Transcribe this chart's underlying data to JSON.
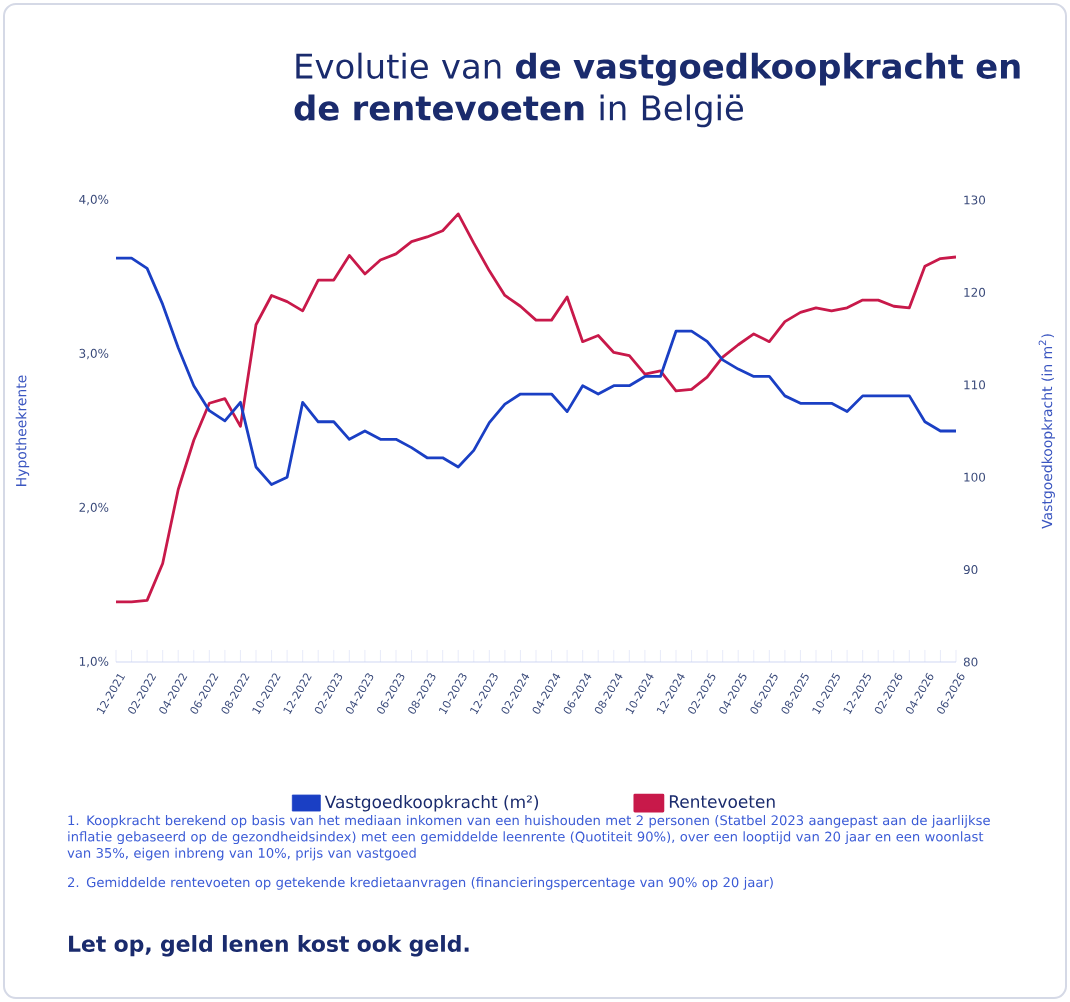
{
  "chart_data": {
    "type": "line",
    "title": "Evolutie van **de vastgoedkoopkracht en de rentevoeten** in België",
    "ylabel": "Hypotheekrente",
    "y2label": "Vastgoedkoopkracht (in m$^{2}$)",
    "categories": [
      "12-2021",
      null,
      "02-2022",
      null,
      "04-2022",
      null,
      "06-2022",
      null,
      "08-2022",
      null,
      "10-2022",
      null,
      "12-2022",
      null,
      "02-2023",
      null,
      "04-2023",
      null,
      "06-2023",
      null,
      "08-2023",
      null,
      "10-2023",
      null,
      "12-2023",
      null,
      "02-2024",
      null,
      "04-2024",
      null,
      "06-2024",
      null,
      "08-2024",
      null,
      "10-2024",
      null,
      "12-2024",
      null,
      "02-2025",
      null,
      "04-2025",
      null,
      "06-2025",
      null,
      "08-2025",
      null,
      "10-2025",
      null,
      "12-2025",
      null,
      "02-2026",
      null,
      "04-2026",
      null,
      "06-2026"
    ],
    "series": [
      {
        "name": "Vastgoedkoopkracht (m²)",
        "color": "#1a3fc4",
        "axis": "y2",
        "values": [
          123.7,
          123.7,
          122.6,
          118.7,
          114.0,
          109.9,
          107.2,
          106.1,
          108.1,
          101.1,
          99.2,
          100.0,
          108.1,
          106.0,
          106.0,
          104.1,
          105.0,
          104.1,
          104.1,
          103.2,
          102.1,
          102.1,
          101.1,
          102.9,
          105.9,
          107.9,
          109.0,
          109.0,
          109.0,
          107.1,
          109.9,
          109.0,
          109.9,
          109.9,
          110.9,
          110.9,
          115.8,
          115.8,
          114.7,
          112.7,
          111.7,
          110.9,
          110.9,
          108.8,
          108.0,
          108.0,
          108.0,
          107.1,
          108.8,
          108.8,
          108.8,
          108.8,
          106.0,
          105.0,
          105.0
        ]
      },
      {
        "name": "Rentevoeten",
        "color": "#c8194a",
        "values": [
          1.39,
          1.39,
          1.4,
          1.64,
          2.12,
          2.44,
          2.68,
          2.71,
          2.53,
          3.19,
          3.38,
          3.34,
          3.28,
          3.48,
          3.48,
          3.64,
          3.52,
          3.61,
          3.65,
          3.73,
          3.76,
          3.8,
          3.91,
          3.72,
          3.54,
          3.38,
          3.31,
          3.22,
          3.22,
          3.37,
          3.08,
          3.12,
          3.01,
          2.99,
          2.87,
          2.89,
          2.76,
          2.77,
          2.85,
          2.98,
          3.06,
          3.13,
          3.08,
          3.21,
          3.27,
          3.3,
          3.28,
          3.3,
          3.35,
          3.35,
          3.31,
          3.3,
          3.57,
          3.62,
          3.63
        ]
      }
    ],
    "ylim": [
      1.0,
      4.0
    ],
    "yticks": [
      {
        "value": 1.0,
        "label": "1,0%"
      },
      {
        "value": 2.0,
        "label": "2,0%"
      },
      {
        "value": 3.0,
        "label": "3,0%"
      },
      {
        "value": 4.0,
        "label": "4,0%"
      }
    ],
    "y2lim": [
      80,
      130
    ],
    "y2ticks": [
      80,
      90,
      100,
      110,
      120,
      130
    ],
    "legend": "bottom",
    "annotations": [
      "1. Koopkracht berekend op basis van het mediaan inkomen van een huishouden met 2 personen (Statbel 2023 aangepast aan de jaarlijkse inflatie gebaseerd op de gezondheidsindex) met een gemiddelde leenrente (Quotiteit 90%), over een looptijd van 20 jaar en een woonlast van 35%, eigen inbreng van 10%, prijs van vastgoed",
      "2. Gemiddelde rentevoeten op getekende kredietaanvragen (financieringspercentage van 90% op 20 jaar)",
      "Let op, geld lenen kost ook geld."
    ]
  }
}
